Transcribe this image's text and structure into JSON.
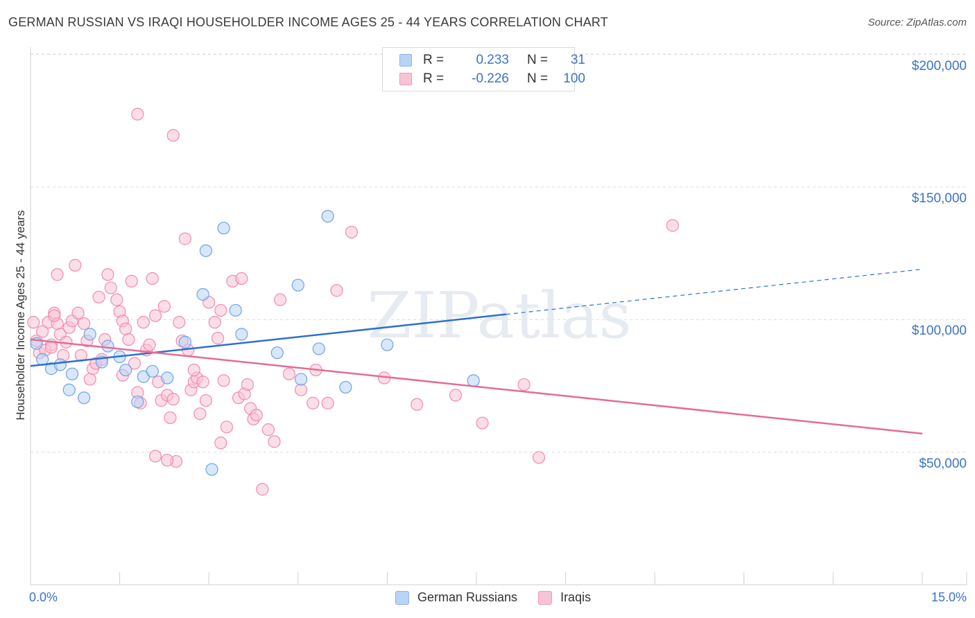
{
  "title": "GERMAN RUSSIAN VS IRAQI HOUSEHOLDER INCOME AGES 25 - 44 YEARS CORRELATION CHART",
  "source": "Source: ZipAtlas.com",
  "watermark": "ZIPatlas",
  "legend": {
    "rows": [
      {
        "r_label": "R =",
        "r_value": "0.233",
        "n_label": "N =",
        "n_value": "31",
        "color": "#b8d4f5",
        "border": "#8ab4e8"
      },
      {
        "r_label": "R =",
        "r_value": "-0.226",
        "n_label": "N =",
        "n_value": "100",
        "color": "#f9c3d4",
        "border": "#ef9ab7"
      }
    ]
  },
  "bottom_legend": [
    {
      "label": "German Russians",
      "color": "#b8d4f5",
      "border": "#8ab4e8"
    },
    {
      "label": "Iraqis",
      "color": "#f9c3d4",
      "border": "#ef9ab7"
    }
  ],
  "chart_data": {
    "type": "scatter",
    "ylabel": "Householder Income Ages 25 - 44 years",
    "xlim": [
      0,
      15
    ],
    "ylim": [
      0,
      210000
    ],
    "y_ticks": [
      {
        "value": 50000,
        "label": "$50,000"
      },
      {
        "value": 100000,
        "label": "$100,000"
      },
      {
        "value": 150000,
        "label": "$150,000"
      },
      {
        "value": 200000,
        "label": "$200,000"
      }
    ],
    "x_tick_labels": [
      "0.0%",
      "15.0%"
    ],
    "grid": true,
    "legend_position": "top-center",
    "series": [
      {
        "name": "German Russians",
        "color": "#6fa3e3",
        "fill": "#b8d4f5",
        "trend": {
          "x0": 0,
          "y0": 82500,
          "x1": 8.0,
          "y1": 102000,
          "dash_to_x": 15.0,
          "dash_to_y": 119000,
          "color": "#2d6fd0"
        },
        "points": [
          [
            0.1,
            91000
          ],
          [
            0.2,
            85000
          ],
          [
            0.35,
            81500
          ],
          [
            0.5,
            83000
          ],
          [
            0.65,
            73500
          ],
          [
            0.7,
            79500
          ],
          [
            0.9,
            70500
          ],
          [
            1.0,
            94500
          ],
          [
            1.2,
            84000
          ],
          [
            1.3,
            90000
          ],
          [
            1.5,
            86000
          ],
          [
            1.6,
            81000
          ],
          [
            1.8,
            69000
          ],
          [
            1.9,
            78500
          ],
          [
            2.05,
            80500
          ],
          [
            2.3,
            78000
          ],
          [
            2.6,
            91500
          ],
          [
            2.9,
            109500
          ],
          [
            2.95,
            126000
          ],
          [
            3.25,
            134500
          ],
          [
            3.45,
            103500
          ],
          [
            3.55,
            94500
          ],
          [
            3.05,
            43500
          ],
          [
            4.15,
            87500
          ],
          [
            4.5,
            113000
          ],
          [
            4.55,
            77500
          ],
          [
            4.85,
            89000
          ],
          [
            5.0,
            139000
          ],
          [
            5.3,
            74500
          ],
          [
            6.0,
            90500
          ],
          [
            7.45,
            77000
          ]
        ]
      },
      {
        "name": "Iraqis",
        "color": "#ef8bb0",
        "fill": "#f9c3d4",
        "trend": {
          "x0": 0,
          "y0": 92500,
          "x1": 15.0,
          "y1": 57000,
          "color": "#e56b96"
        },
        "points": [
          [
            0.05,
            99000
          ],
          [
            0.1,
            92000
          ],
          [
            0.15,
            87500
          ],
          [
            0.2,
            95500
          ],
          [
            0.25,
            88500
          ],
          [
            0.3,
            99000
          ],
          [
            0.35,
            90500
          ],
          [
            0.4,
            102500
          ],
          [
            0.45,
            98500
          ],
          [
            0.5,
            94500
          ],
          [
            0.45,
            117000
          ],
          [
            0.55,
            86500
          ],
          [
            0.6,
            91500
          ],
          [
            0.65,
            97000
          ],
          [
            0.7,
            99500
          ],
          [
            0.75,
            120500
          ],
          [
            0.8,
            102500
          ],
          [
            0.85,
            86500
          ],
          [
            0.9,
            98500
          ],
          [
            0.95,
            92000
          ],
          [
            1.0,
            77500
          ],
          [
            1.05,
            81500
          ],
          [
            1.1,
            83500
          ],
          [
            1.15,
            108500
          ],
          [
            1.2,
            85000
          ],
          [
            1.25,
            92500
          ],
          [
            1.3,
            117000
          ],
          [
            1.35,
            112000
          ],
          [
            1.45,
            107500
          ],
          [
            1.5,
            103000
          ],
          [
            1.55,
            99500
          ],
          [
            1.6,
            96500
          ],
          [
            1.65,
            92500
          ],
          [
            1.7,
            114500
          ],
          [
            1.75,
            83500
          ],
          [
            1.8,
            72500
          ],
          [
            1.85,
            68500
          ],
          [
            1.9,
            99000
          ],
          [
            1.95,
            88500
          ],
          [
            2.0,
            90500
          ],
          [
            2.05,
            115500
          ],
          [
            2.1,
            101500
          ],
          [
            2.15,
            76500
          ],
          [
            2.2,
            69500
          ],
          [
            2.25,
            105000
          ],
          [
            2.3,
            71500
          ],
          [
            2.35,
            63000
          ],
          [
            2.4,
            70000
          ],
          [
            2.45,
            46500
          ],
          [
            2.5,
            99000
          ],
          [
            2.55,
            92000
          ],
          [
            2.6,
            130500
          ],
          [
            2.65,
            88500
          ],
          [
            2.7,
            73500
          ],
          [
            2.75,
            76500
          ],
          [
            2.8,
            78000
          ],
          [
            2.85,
            64500
          ],
          [
            2.9,
            76500
          ],
          [
            2.95,
            69500
          ],
          [
            3.0,
            106500
          ],
          [
            3.1,
            99000
          ],
          [
            3.15,
            93000
          ],
          [
            3.2,
            53500
          ],
          [
            3.25,
            77000
          ],
          [
            3.3,
            59500
          ],
          [
            3.4,
            114500
          ],
          [
            3.5,
            70500
          ],
          [
            3.55,
            115500
          ],
          [
            3.6,
            72000
          ],
          [
            3.65,
            75500
          ],
          [
            3.7,
            66500
          ],
          [
            3.75,
            62500
          ],
          [
            3.8,
            64000
          ],
          [
            3.9,
            36000
          ],
          [
            4.0,
            58500
          ],
          [
            4.1,
            54000
          ],
          [
            4.2,
            107500
          ],
          [
            4.35,
            79500
          ],
          [
            4.55,
            73500
          ],
          [
            4.75,
            68500
          ],
          [
            4.8,
            81000
          ],
          [
            5.0,
            68500
          ],
          [
            5.15,
            111000
          ],
          [
            5.4,
            133000
          ],
          [
            5.95,
            78000
          ],
          [
            1.8,
            177500
          ],
          [
            2.1,
            48500
          ],
          [
            2.3,
            47000
          ],
          [
            2.4,
            169500
          ],
          [
            6.5,
            68000
          ],
          [
            7.15,
            71500
          ],
          [
            7.6,
            61000
          ],
          [
            8.3,
            75500
          ],
          [
            8.55,
            48000
          ],
          [
            10.8,
            135500
          ],
          [
            3.2,
            103500
          ],
          [
            1.55,
            79000
          ],
          [
            0.4,
            101500
          ],
          [
            2.75,
            81000
          ],
          [
            0.35,
            89500
          ]
        ]
      }
    ]
  }
}
